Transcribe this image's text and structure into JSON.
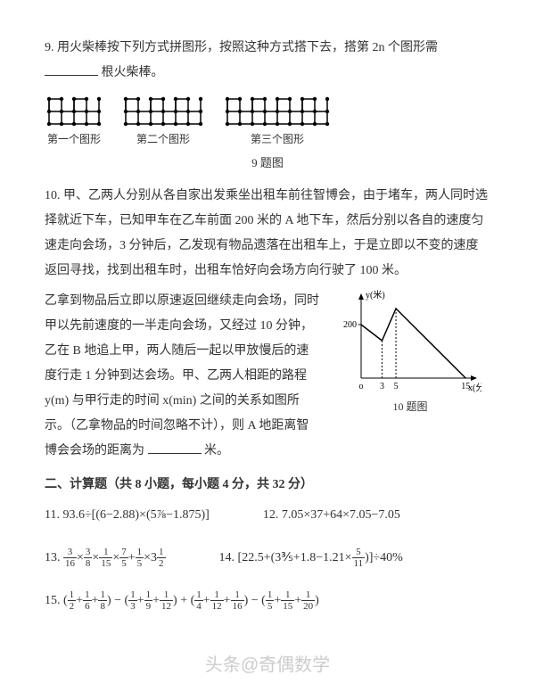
{
  "q9": {
    "text_a": "9. 用火柴棒按下列方式拼图形，按照这种方式搭下去，搭第 2n 个图形需",
    "text_b": "根火柴棒。",
    "fig1_label": "第一个图形",
    "fig2_label": "第二个图形",
    "fig3_label": "第三个图形",
    "caption": "9 题图",
    "diagrams": {
      "node_color": "#000000",
      "line_color": "#000000",
      "node_radius": 2.2,
      "cell_size": 14,
      "fig1": {
        "cols": 4,
        "top_pattern": [
          1,
          0,
          1,
          0,
          1
        ]
      },
      "fig2": {
        "cols": 6,
        "top_pattern": [
          1,
          0,
          1,
          0,
          1,
          0,
          1
        ]
      },
      "fig3": {
        "cols": 8,
        "top_pattern": [
          1,
          0,
          1,
          0,
          1,
          0,
          1,
          0,
          1
        ]
      }
    }
  },
  "q10": {
    "p1": "10. 甲、乙两人分别从各自家出发乘坐出租车前往智博会，由于堵车，两人同时选择就近下车，已知甲车在乙车前面 200 米的 A 地下车，然后分别以各自的速度匀速走向会场，3 分钟后，乙发现有物品遗落在出租车上，于是立即以不变的速度返回寻找，找到出租车时，出租车恰好向会场方向行驶了 100 米。",
    "p2": "乙拿到物品后立即以原速返回继续走向会场，同时甲以先前速度的一半走向会场，又经过 10 分钟，乙在 B 地追上甲，两人随后一起以甲放慢后的速度行走 1 分钟到达会场。甲、乙两人相距的路程 y(m) 与甲行走的时间 x(min) 之间的关系如图所示。（乙拿物品的时间忽略不计），则 A 地距离智博会会场的距离为",
    "p3": "米。",
    "chart": {
      "type": "line",
      "x_label": "x(分)",
      "y_label": "y(米)",
      "x_ticks": [
        0,
        3,
        5,
        15
      ],
      "y_ticks": [
        200
      ],
      "points": [
        [
          0,
          200
        ],
        [
          3,
          140
        ],
        [
          5,
          260
        ],
        [
          15,
          0
        ]
      ],
      "dashed_from": [
        [
          3,
          140
        ],
        [
          5,
          260
        ]
      ],
      "line_color": "#000000",
      "axis_color": "#000000",
      "grid": false,
      "caption": "10 题图"
    }
  },
  "section2": "二、计算题（共 8 小题，每小题 4 分，共 32 分）",
  "q11": {
    "label": "11.",
    "expr": "93.6÷[(6−2.88)×(5⅞−1.875)]"
  },
  "q12": {
    "label": "12.",
    "expr": "7.05×37+64×7.05−7.05"
  },
  "q13": {
    "label": "13.",
    "parts": [
      "3/16",
      "×",
      "3/8",
      "×",
      "1/15",
      "×",
      "7/5",
      "+",
      "1/5",
      "×",
      "3½"
    ]
  },
  "q14": {
    "label": "14.",
    "expr_a": "[22.5+(3⅗+1.8−1.21×",
    "frac": {
      "n": "5",
      "d": "11"
    },
    "expr_b": ")]÷40%"
  },
  "q15": {
    "label": "15.",
    "g1": [
      "1/2",
      "+",
      "1/6",
      "+",
      "1/8"
    ],
    "g2": [
      "1/3",
      "+",
      "1/9",
      "+",
      "1/12"
    ],
    "g3": [
      "1/4",
      "+",
      "1/12",
      "+",
      "1/16"
    ],
    "g4": [
      "1/5",
      "+",
      "1/15",
      "+",
      "1/20"
    ]
  },
  "watermark": "头条@奇偶数学",
  "colors": {
    "text": "#333333",
    "bg": "#ffffff",
    "watermark": "#cccccc"
  }
}
